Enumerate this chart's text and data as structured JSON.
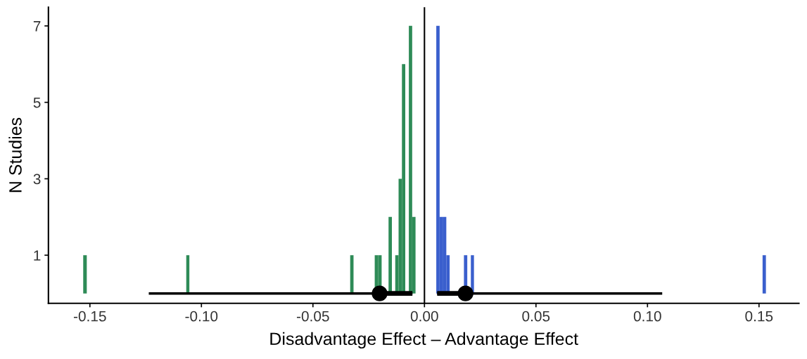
{
  "chart_data": {
    "type": "histogram",
    "xlabel": "Disadvantage Effect – Advantage Effect",
    "ylabel": "N Studies",
    "xlim": [
      -0.1686,
      0.1679
    ],
    "ylim": [
      -0.26,
      7.49
    ],
    "xticks": [
      {
        "value": -0.15,
        "label": "-0.15"
      },
      {
        "value": -0.1,
        "label": "-0.10"
      },
      {
        "value": -0.05,
        "label": "-0.05"
      },
      {
        "value": 0,
        "label": "0.00"
      },
      {
        "value": 0.05,
        "label": "0.05"
      },
      {
        "value": 0.1,
        "label": "0.10"
      },
      {
        "value": 0.15,
        "label": "0.15"
      }
    ],
    "yticks": [
      1,
      3,
      5,
      7
    ],
    "grid": false,
    "legend": false,
    "ref_lines": [
      {
        "axis": "x",
        "value": 0,
        "color": "#000000"
      }
    ],
    "series": [
      {
        "color": "#2e8b57",
        "bins": [
          -0.153,
          -0.1514,
          -0.1068,
          -0.1054,
          -0.0333,
          -0.0318,
          -0.0223,
          -0.0208,
          -0.0192,
          -0.0161,
          -0.0146,
          -0.0131,
          -0.0116,
          -0.0101,
          -0.0086,
          -0.007,
          -0.0055,
          -0.004
        ],
        "values": [
          1,
          0,
          1,
          0,
          1,
          0,
          1,
          1,
          0,
          2,
          0,
          1,
          3,
          6,
          0,
          7,
          2
        ]
      },
      {
        "color": "#3a5fcd",
        "bins": [
          0.0053,
          0.0068,
          0.0084,
          0.0098,
          0.0113,
          0.0177,
          0.0192,
          0.0208,
          0.0222,
          0.1516,
          0.1531
        ],
        "values": [
          7,
          2,
          2,
          1,
          0,
          1,
          0,
          1,
          0,
          1
        ]
      },
      {
        "type": "line",
        "color": "#000000",
        "marker": "none",
        "x": [
          -0.0201,
          -0.0054
        ],
        "values": [
          0,
          0
        ]
      },
      {
        "type": "line",
        "color": "#000000",
        "marker": "none",
        "x": [
          0.0057,
          0.0184
        ],
        "values": [
          0,
          0
        ]
      },
      {
        "type": "scatter",
        "color": "#000000",
        "marker": "circle",
        "x": [
          -0.0201,
          0.0184
        ],
        "values": [
          0,
          0
        ],
        "xerrors": [
          [
            -0.1236,
            -0.0054
          ],
          [
            0.0057,
            0.1066
          ]
        ]
      }
    ]
  }
}
